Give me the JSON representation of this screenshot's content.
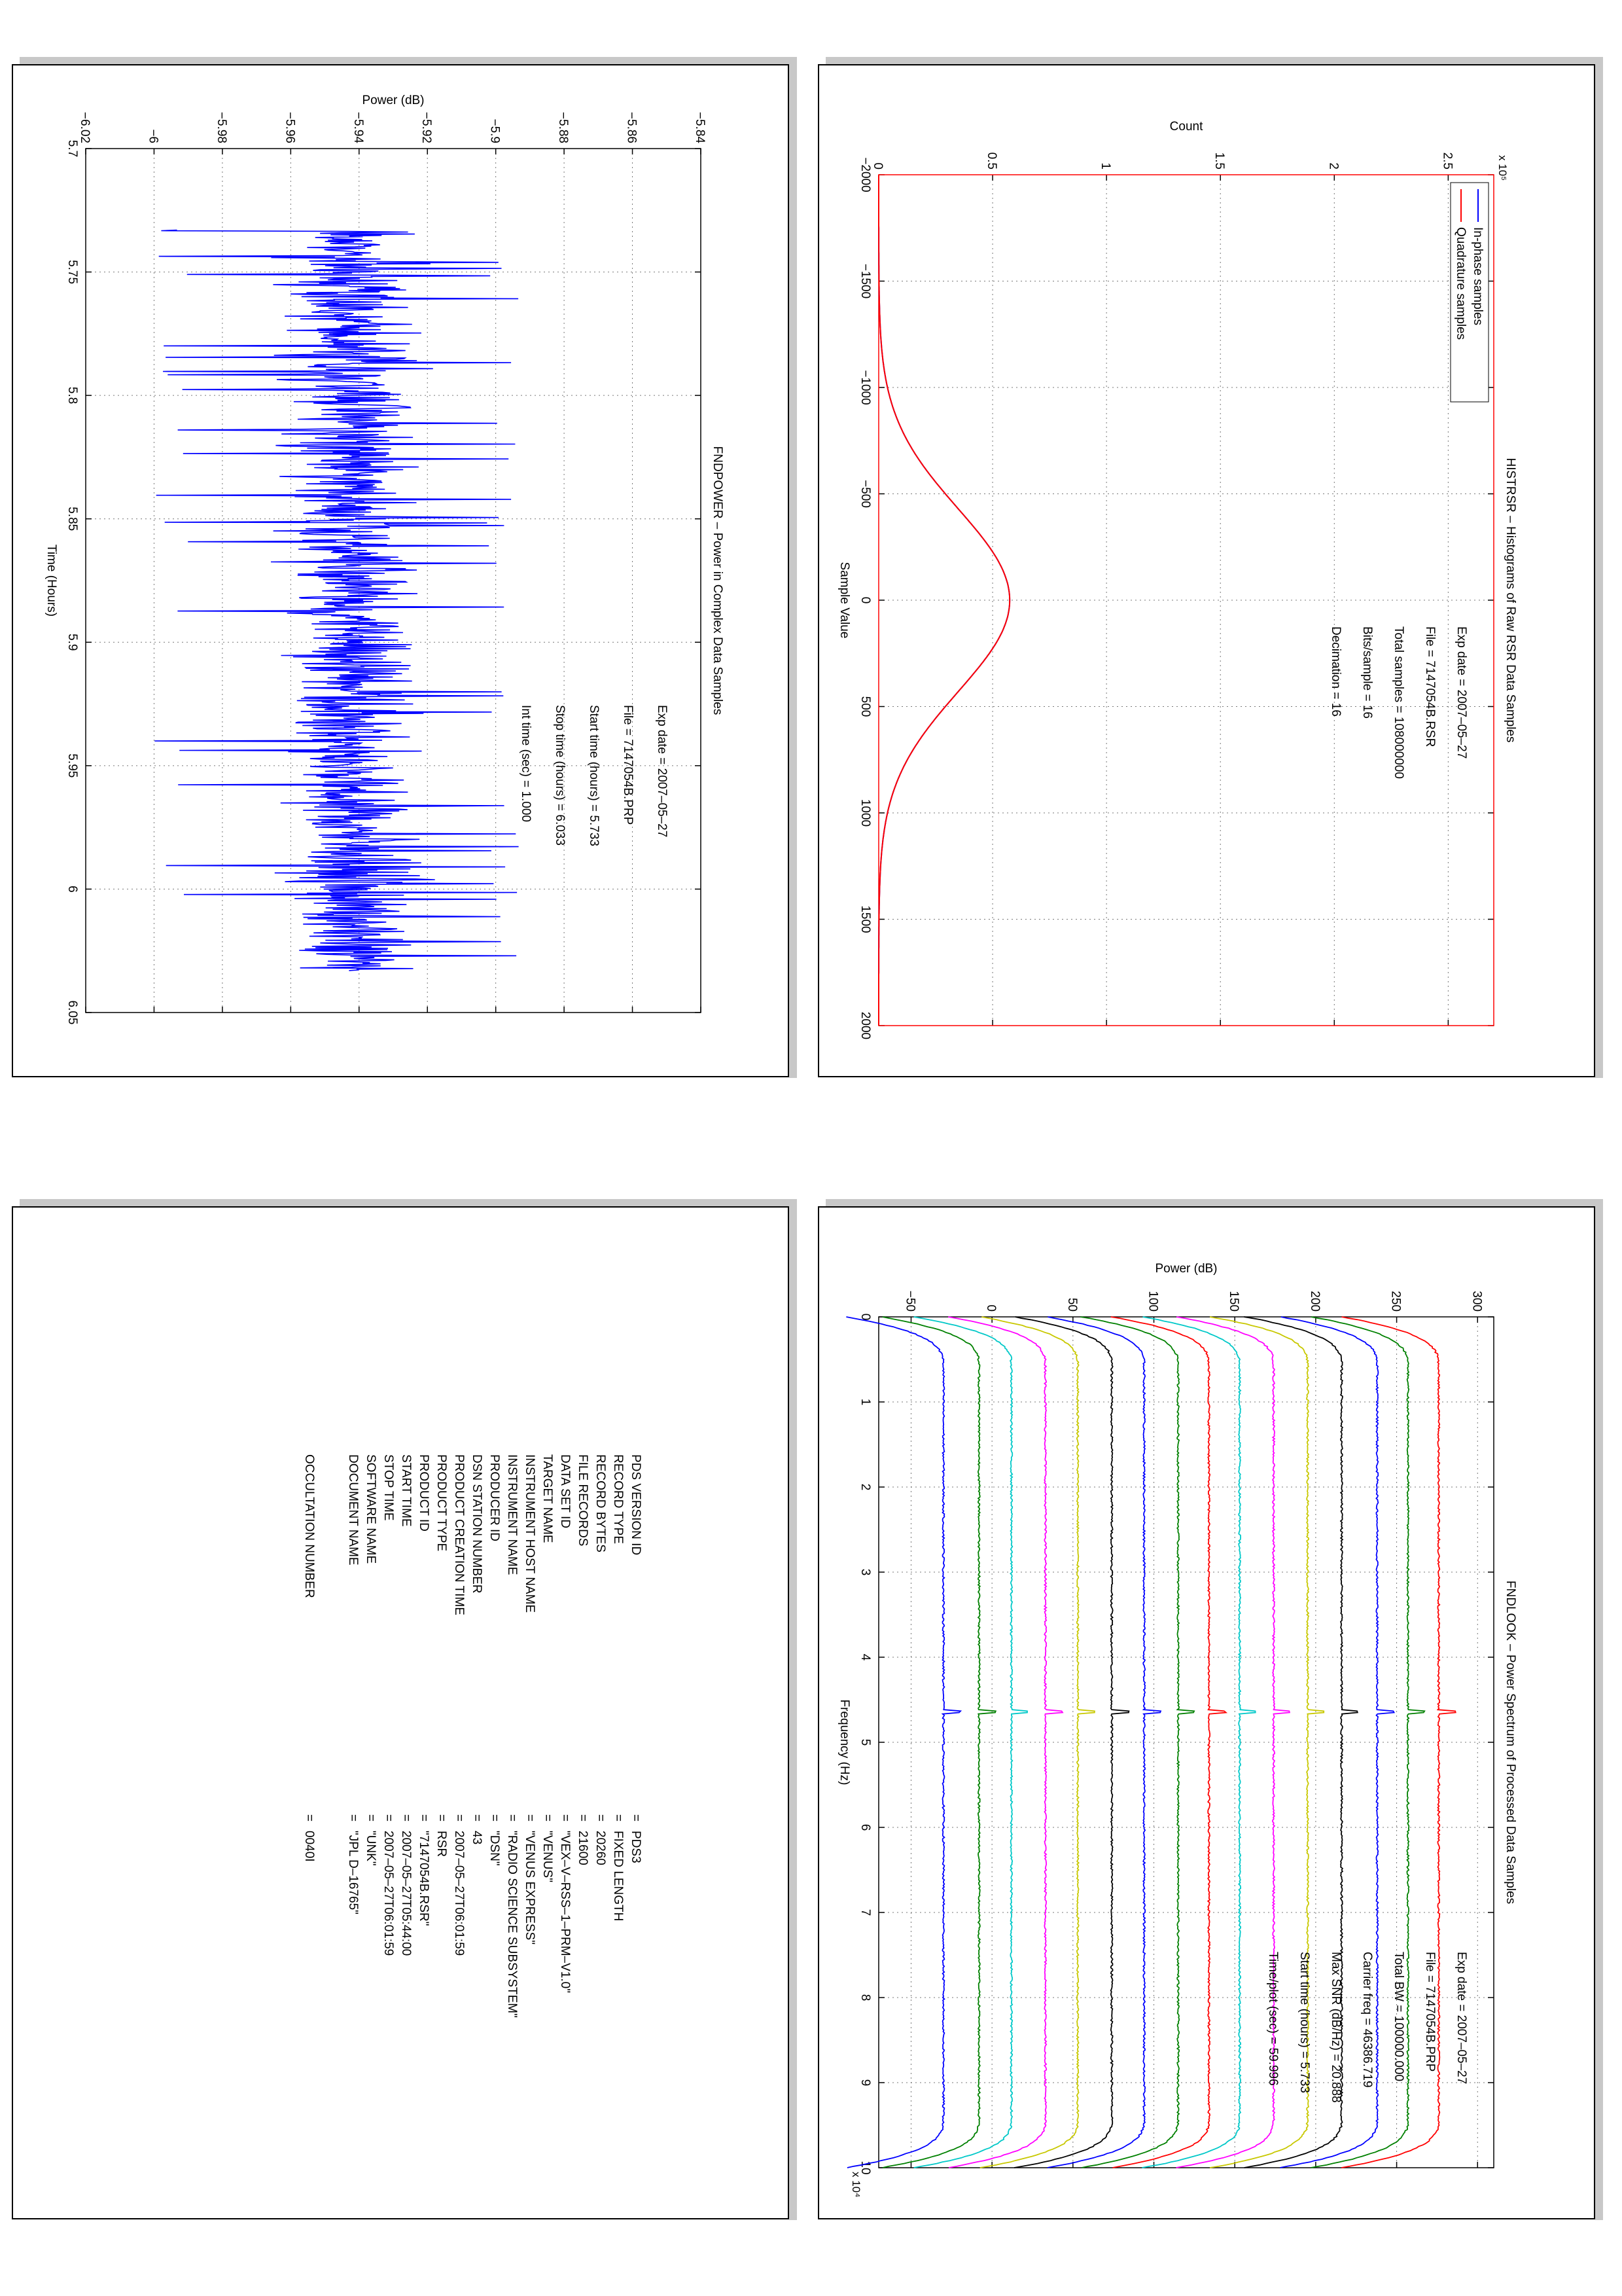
{
  "chart_data": [
    {
      "id": "histrsr",
      "type": "line",
      "title": "HISTRSR – Histograms of Raw RSR Data Samples",
      "xlabel": "Sample Value",
      "ylabel": "Count",
      "y_multiplier": "x 10⁵",
      "xlim": [
        -2000,
        2000
      ],
      "ylim": [
        0,
        2.7
      ],
      "xticks": [
        -2000,
        -1500,
        -1000,
        -500,
        0,
        500,
        1000,
        1500,
        2000
      ],
      "xtick_labels": [
        "−2000",
        "−1500",
        "−1000",
        "−500",
        "0",
        "500",
        "1000",
        "1500",
        "2000"
      ],
      "yticks": [
        0,
        0.5,
        1,
        1.5,
        2,
        2.5
      ],
      "ytick_labels": [
        "0",
        "0.5",
        "1",
        "1.5",
        "2",
        "2.5"
      ],
      "grid": true,
      "legend_position": "top-left",
      "series": [
        {
          "name": "In-phase samples",
          "color": "#0000ff",
          "curve": "gaussian",
          "peak": 0.575,
          "mean": 0,
          "sigma": 430
        },
        {
          "name": "Quadrature samples",
          "color": "#ff0000",
          "curve": "gaussian",
          "peak": 0.575,
          "mean": 0,
          "sigma": 430
        }
      ],
      "annotations": [
        {
          "label": "Exp date = 2007–05–27"
        },
        {
          "label": "File = 7147054B.RSR"
        },
        {
          "label": "Total samples = 108000000"
        },
        {
          "label": "Bits/sample    =      16"
        },
        {
          "label": "Decimation     =      16"
        }
      ]
    },
    {
      "id": "fndpower",
      "type": "line",
      "title": "FNDPOWER – Power in Complex Data Samples",
      "xlabel": "Time (Hours)",
      "ylabel": "Power (dB)",
      "xlim": [
        5.7,
        6.05
      ],
      "ylim": [
        -6.02,
        -5.84
      ],
      "xticks": [
        5.7,
        5.75,
        5.8,
        5.85,
        5.9,
        5.95,
        6.0,
        6.05
      ],
      "xtick_labels": [
        "5.7",
        "5.75",
        "5.8",
        "5.85",
        "5.9",
        "5.95",
        "6",
        "6.05"
      ],
      "yticks": [
        -6.02,
        -6.0,
        -5.98,
        -5.96,
        -5.94,
        -5.92,
        -5.9,
        -5.88,
        -5.86,
        -5.84
      ],
      "ytick_labels": [
        "−6.02",
        "−6",
        "−5.98",
        "−5.96",
        "−5.94",
        "−5.92",
        "−5.9",
        "−5.88",
        "−5.86",
        "−5.84"
      ],
      "grid": true,
      "series": [
        {
          "color": "#0000ff",
          "curve": "noise",
          "x_start": 5.733,
          "x_end": 6.033,
          "mean": -5.942,
          "spread": 0.012,
          "min": -6.0,
          "max": -5.893
        }
      ],
      "annotations": [
        {
          "label": "Exp date = 2007–05–27"
        },
        {
          "label": "File = 7147054B.PRP"
        },
        {
          "label": "Start time (hours) =   5.733"
        },
        {
          "label": "Stop time (hours) =   6.033"
        },
        {
          "label": "Int time (sec) =       1.000"
        }
      ]
    },
    {
      "id": "fndlook",
      "type": "line",
      "title": "FNDLOOK – Power Spectrum of Processed Data Samples",
      "xlabel": "Frequency (Hz)",
      "ylabel": "Power (dB)",
      "x_multiplier": "x 10⁴",
      "xlim": [
        0,
        10
      ],
      "ylim": [
        -70,
        310
      ],
      "xticks": [
        0,
        1,
        2,
        3,
        4,
        5,
        6,
        7,
        8,
        9,
        10
      ],
      "xtick_labels": [
        "0",
        "1",
        "2",
        "3",
        "4",
        "5",
        "6",
        "7",
        "8",
        "9",
        "10"
      ],
      "yticks": [
        -50,
        0,
        50,
        100,
        150,
        200,
        250,
        300
      ],
      "ytick_labels": [
        "−50",
        "0",
        "50",
        "100",
        "150",
        "200",
        "250",
        "300"
      ],
      "grid": true,
      "series": [
        {
          "color": "#ff0000",
          "level": 276
        },
        {
          "color": "#008000",
          "level": 257
        },
        {
          "color": "#0000ff",
          "level": 238
        },
        {
          "color": "#000000",
          "level": 216
        },
        {
          "color": "#c8c800",
          "level": 195
        },
        {
          "color": "#ff00ff",
          "level": 174
        },
        {
          "color": "#00c8c8",
          "level": 153
        },
        {
          "color": "#ff0000",
          "level": 134
        },
        {
          "color": "#008000",
          "level": 115
        },
        {
          "color": "#0000ff",
          "level": 94
        },
        {
          "color": "#000000",
          "level": 74
        },
        {
          "color": "#c8c800",
          "level": 53
        },
        {
          "color": "#ff00ff",
          "level": 33
        },
        {
          "color": "#00c8c8",
          "level": 12
        },
        {
          "color": "#008000",
          "level": -8
        },
        {
          "color": "#0000ff",
          "level": -30
        }
      ],
      "annotations": [
        {
          "label": "Exp date = 2007–05–27"
        },
        {
          "label": "File = 7147054B.PRP"
        },
        {
          "label": "Total BW =       100000.000"
        },
        {
          "label": "Carrier freq =   46386.719"
        },
        {
          "label": "Max SNR (dB/Hz) =     20.888"
        },
        {
          "label": "Start time (hours) =     5.733"
        },
        {
          "label": "Time/plot (sec) =      59.996"
        }
      ]
    }
  ],
  "pds_header": {
    "rows": [
      {
        "key": "PDS VERSION ID",
        "value": "PDS3"
      },
      {
        "key": "RECORD TYPE",
        "value": "FIXED LENGTH"
      },
      {
        "key": "RECORD BYTES",
        "value": "20260"
      },
      {
        "key": "FILE RECORDS",
        "value": "21600"
      },
      {
        "key": "DATA SET ID",
        "value": "\"VEX–V–RSS–1–PRM–V1.0\""
      },
      {
        "key": "TARGET NAME",
        "value": "\"VENUS\""
      },
      {
        "key": "INSTRUMENT HOST NAME",
        "value": "\"VENUS EXPRESS\""
      },
      {
        "key": "INSTRUMENT NAME",
        "value": "\"RADIO SCIENCE SUBSYSTEM\""
      },
      {
        "key": "PRODUCER ID",
        "value": "\"DSN\""
      },
      {
        "key": "DSN STATION NUMBER",
        "value": "43"
      },
      {
        "key": "PRODUCT CREATION TIME",
        "value": "2007–05–27T06:01:59"
      },
      {
        "key": "PRODUCT TYPE",
        "value": "RSR"
      },
      {
        "key": "PRODUCT ID",
        "value": "\"7147054B.RSR\""
      },
      {
        "key": "START TIME",
        "value": "2007–05–27T05:44:00"
      },
      {
        "key": "STOP TIME",
        "value": "2007–05–27T06:01:59"
      },
      {
        "key": "SOFTWARE NAME",
        "value": "\"UNK\""
      },
      {
        "key": "DOCUMENT NAME",
        "value": "\"JPL D–16765\""
      },
      {
        "key": "OCCULTATION NUMBER",
        "value": "0040I"
      }
    ],
    "eq_sign": "="
  }
}
